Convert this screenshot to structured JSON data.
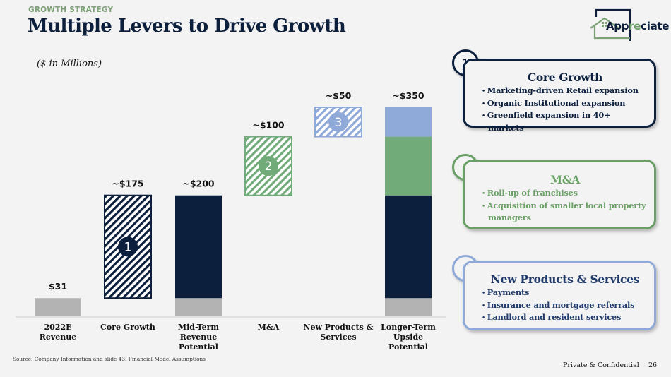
{
  "header": {
    "eyebrow": "GROWTH STRATEGY",
    "title": "Multiple Levers to Drive Growth",
    "units": "($ in Millions)"
  },
  "logo": {
    "text_prefix": "App",
    "text_accent": "re",
    "text_suffix": "ciate",
    "icon": "house-outline-icon"
  },
  "colors": {
    "navy": "#0c1f3d",
    "green": "#71ab79",
    "blue": "#8fa9d9",
    "gray": "#b3b3b3",
    "eyebrow_green": "#7ca276"
  },
  "chart_data": {
    "type": "bar",
    "subtype": "waterfall",
    "title": "Multiple Levers to Drive Growth",
    "ylabel": "($ in Millions)",
    "xlabel": "",
    "grid": false,
    "ylim": [
      0,
      350
    ],
    "categories": [
      "2022E Revenue",
      "Core Growth",
      "Mid-Term Revenue Potential",
      "M&A",
      "New Products & Services",
      "Longer-Term Upside Potential"
    ],
    "category_lines": [
      [
        "2022E",
        "Revenue"
      ],
      [
        "Core Growth"
      ],
      [
        "Mid-Term",
        "Revenue",
        "Potential"
      ],
      [
        "M&A"
      ],
      [
        "New Products &",
        "Services"
      ],
      [
        "Longer-Term",
        "Upside",
        "Potential"
      ]
    ],
    "data_labels": [
      "$31",
      "~$175",
      "~$200",
      "~$100",
      "~$50",
      "~$350"
    ],
    "bars": [
      {
        "category": "2022E Revenue",
        "kind": "total",
        "segments": [
          {
            "name": "2022E Revenue",
            "start": 0,
            "end": 31,
            "color": "gray",
            "pattern": "solid"
          }
        ]
      },
      {
        "category": "Core Growth",
        "kind": "increment",
        "badge": "1",
        "segments": [
          {
            "name": "Core Growth",
            "start": 31,
            "end": 206,
            "color": "navy",
            "pattern": "hatch"
          }
        ]
      },
      {
        "category": "Mid-Term Revenue Potential",
        "kind": "total",
        "segments": [
          {
            "name": "2022E Revenue",
            "start": 0,
            "end": 31,
            "color": "gray",
            "pattern": "solid"
          },
          {
            "name": "Core Growth",
            "start": 31,
            "end": 206,
            "color": "navy",
            "pattern": "solid"
          }
        ]
      },
      {
        "category": "M&A",
        "kind": "increment",
        "badge": "2",
        "segments": [
          {
            "name": "M&A",
            "start": 206,
            "end": 306,
            "color": "green",
            "pattern": "hatch"
          }
        ]
      },
      {
        "category": "New Products & Services",
        "kind": "increment",
        "badge": "3",
        "segments": [
          {
            "name": "New Products & Services",
            "start": 306,
            "end": 356,
            "color": "blue",
            "pattern": "hatch"
          }
        ]
      },
      {
        "category": "Longer-Term Upside Potential",
        "kind": "total",
        "segments": [
          {
            "name": "2022E Revenue",
            "start": 0,
            "end": 31,
            "color": "gray",
            "pattern": "solid"
          },
          {
            "name": "Core Growth",
            "start": 31,
            "end": 206,
            "color": "navy",
            "pattern": "solid"
          },
          {
            "name": "M&A",
            "start": 206,
            "end": 306,
            "color": "green",
            "pattern": "solid"
          },
          {
            "name": "New Products & Services",
            "start": 306,
            "end": 356,
            "color": "blue",
            "pattern": "solid"
          }
        ]
      }
    ]
  },
  "cards": [
    {
      "number": "1",
      "title": "Core Growth",
      "items": [
        "Marketing-driven Retail expansion",
        "Organic Institutional expansion",
        "Greenfield expansion in 40+ markets"
      ]
    },
    {
      "number": "2",
      "title": "M&A",
      "items": [
        "Roll-up of franchises",
        "Acquisition of smaller local property managers"
      ]
    },
    {
      "number": "3",
      "title": "New Products & Services",
      "items": [
        "Payments",
        "Insurance and mortgage referrals",
        "Landlord and resident services"
      ]
    }
  ],
  "footer": {
    "source": "Source: Company Information and slide 43: Financial Model Assumptions",
    "confidential": "Private & Confidential",
    "page_number": "26"
  }
}
